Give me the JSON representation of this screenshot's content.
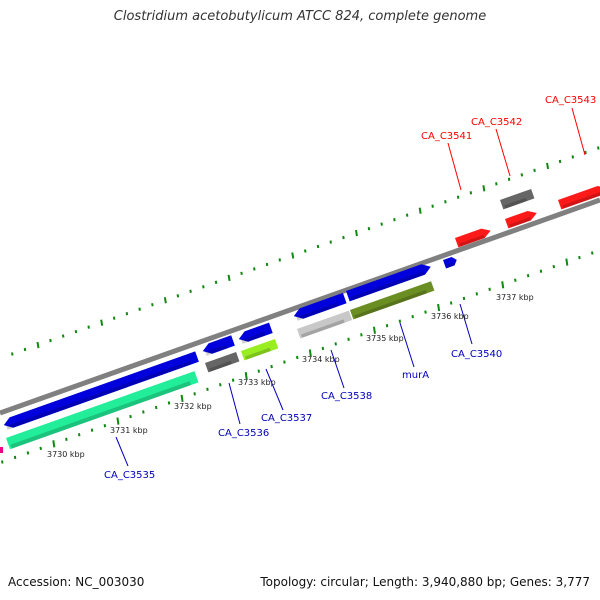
{
  "header": {
    "title": "Clostridium acetobutylicum ATCC 824, complete genome"
  },
  "footer": {
    "accession": "Accession: NC_003030",
    "summary": "Topology: circular; Length: 3,940,880 bp; Genes: 3,777"
  },
  "colors": {
    "backbone": "#808080",
    "tick": "#118811",
    "gene_blue": "#0000dd",
    "label_blue": "#0000bb",
    "label_red": "#ff0000"
  },
  "scale_labels": [
    "3730 kbp",
    "3731 kbp",
    "3732 kbp",
    "3733 kbp",
    "3734 kbp",
    "3735 kbp",
    "3736 kbp",
    "3737 kbp"
  ],
  "gene_labels": [
    {
      "name": "CA_C3535",
      "color": "blue"
    },
    {
      "name": "CA_C3536",
      "color": "blue"
    },
    {
      "name": "CA_C3537",
      "color": "blue"
    },
    {
      "name": "CA_C3538",
      "color": "blue"
    },
    {
      "name": "murA",
      "color": "blue"
    },
    {
      "name": "CA_C3540",
      "color": "blue"
    },
    {
      "name": "CA_C3541",
      "color": "red"
    },
    {
      "name": "CA_C3542",
      "color": "red"
    },
    {
      "name": "CA_C3543",
      "color": "red"
    }
  ]
}
